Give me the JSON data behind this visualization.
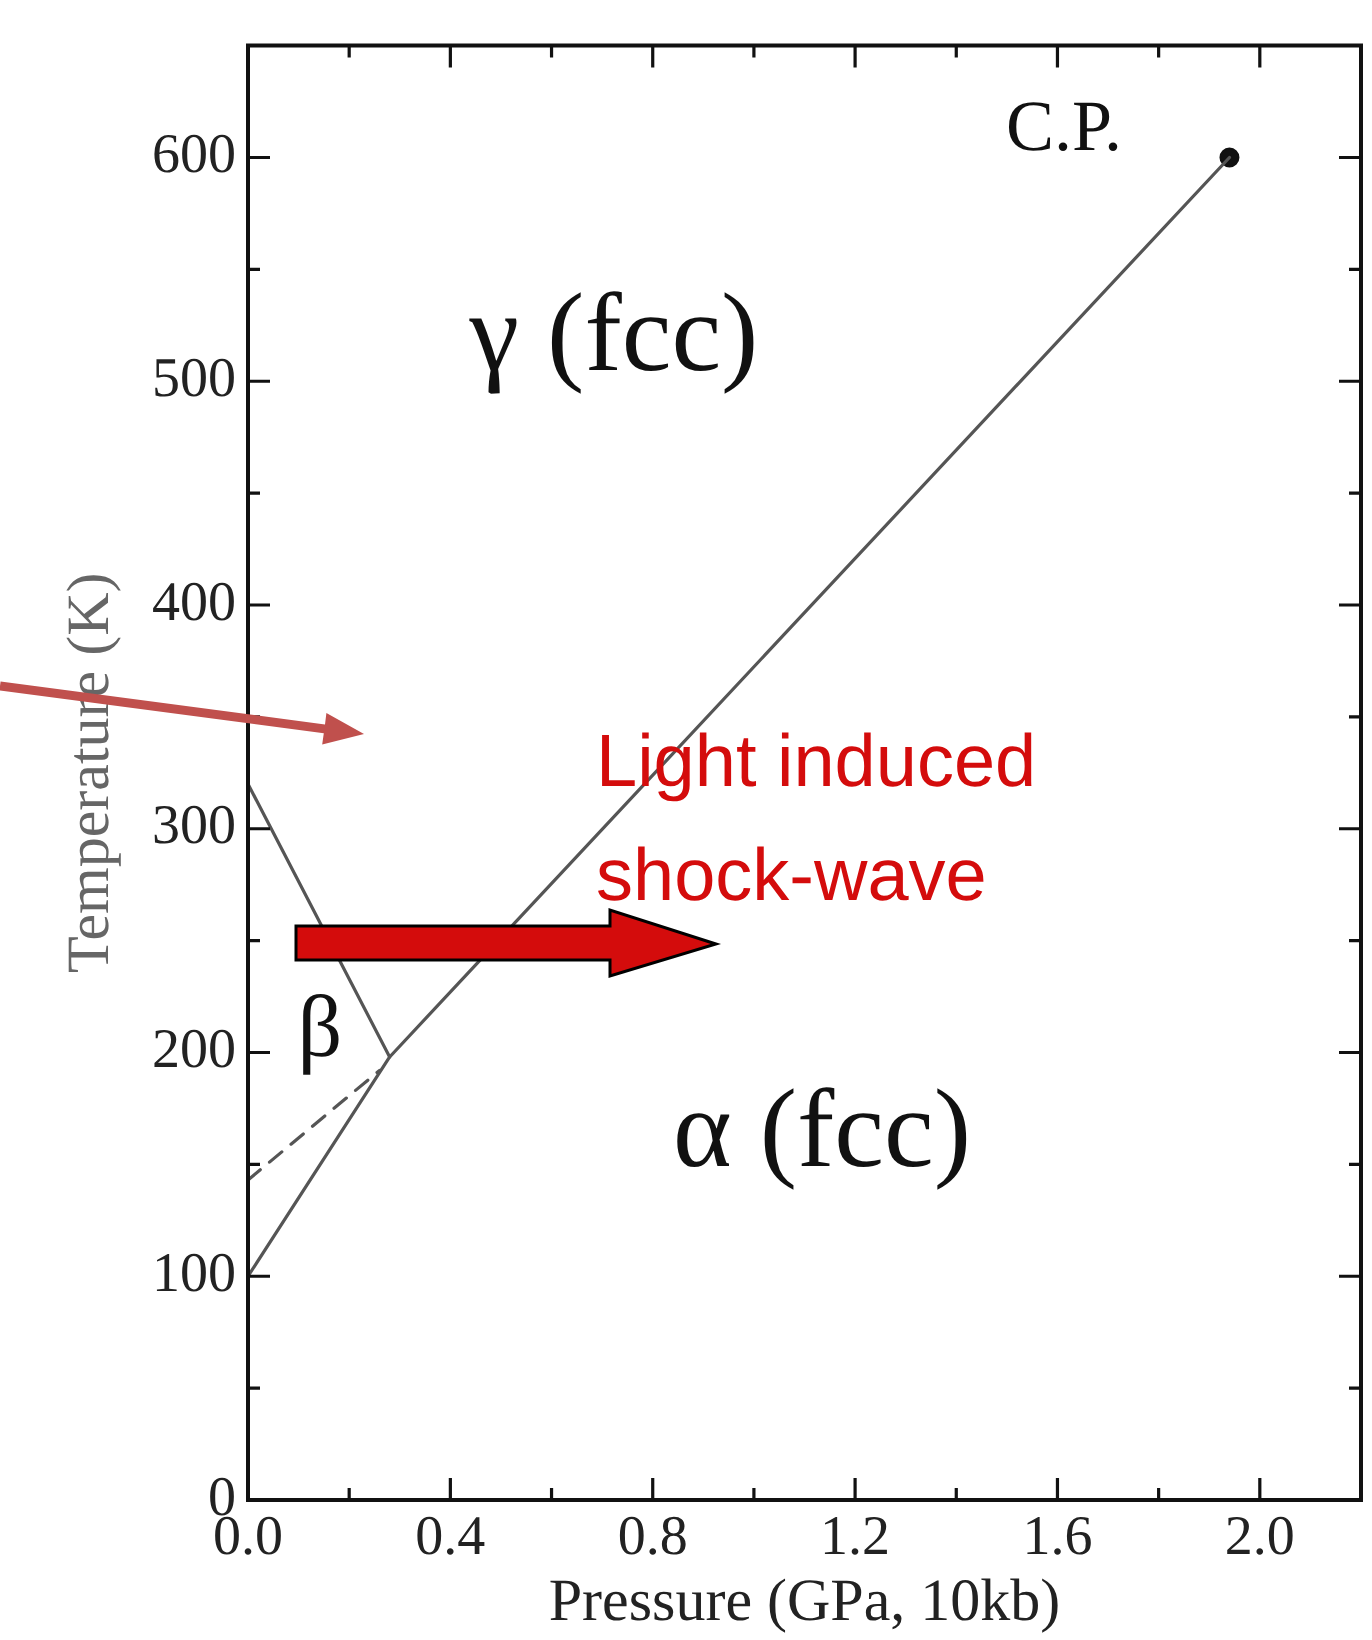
{
  "chart_data": {
    "type": "line",
    "xlabel": "Pressure (GPa, 10kb)",
    "ylabel": "Temperature (K)",
    "xlim": [
      0,
      2.2
    ],
    "ylim": [
      0,
      650
    ],
    "xticks": [
      {
        "value": 0,
        "label": "0.0"
      },
      {
        "value": 0.2,
        "label": null
      },
      0.4,
      {
        "value": 0.6,
        "label": null
      },
      0.8,
      {
        "value": 1,
        "label": null
      },
      1.2,
      {
        "value": 1.4,
        "label": null
      },
      1.6,
      {
        "value": 1.8,
        "label": null
      },
      {
        "value": 2,
        "label": "2.0"
      }
    ],
    "yticks": [
      0,
      {
        "value": 50,
        "label": null
      },
      100,
      {
        "value": 150,
        "label": null
      },
      200,
      {
        "value": 250,
        "label": null
      },
      300,
      {
        "value": 350,
        "label": null
      },
      400,
      {
        "value": 450,
        "label": null
      },
      500,
      {
        "value": 550,
        "label": null
      },
      600
    ],
    "marker": "none",
    "line_style": "solid",
    "series": [
      {
        "x": [
          0,
          0.28,
          1.94
        ],
        "values": [
          100,
          198,
          600
        ],
        "color": "#555555"
      },
      {
        "x": [
          0,
          0.28
        ],
        "values": [
          320,
          198
        ],
        "color": "#555555"
      },
      {
        "x": [
          0,
          0.26
        ],
        "values": [
          143,
          192
        ],
        "color": "#555555",
        "line_style": "dashed"
      },
      {
        "type": "scatter",
        "x": [
          1.94
        ],
        "values": [
          600
        ],
        "color": "#111111",
        "marker": "circle"
      }
    ],
    "annotations": [
      "C.P.",
      "γ (fcc)",
      "β",
      "α (fcc)",
      "Light induced shock-wave"
    ]
  }
}
